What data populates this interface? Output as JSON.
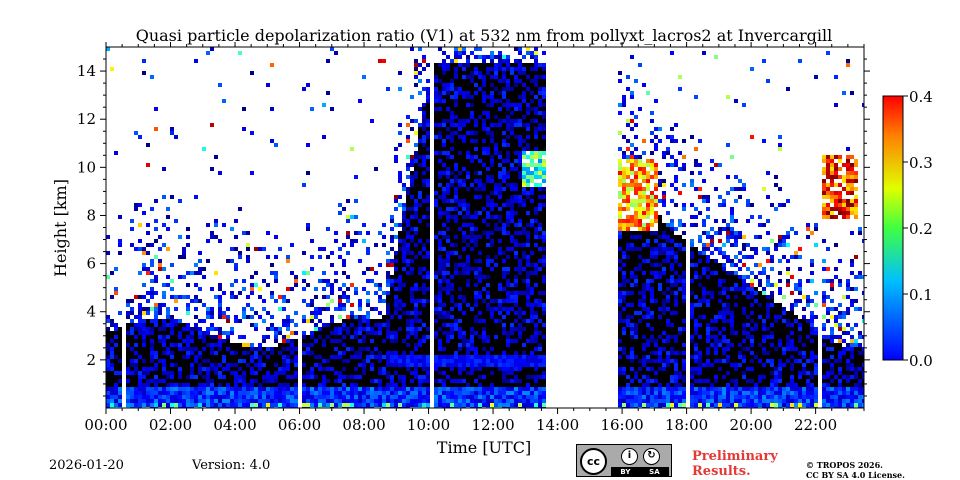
{
  "chart_data": {
    "type": "heatmap",
    "title": "Quasi particle depolarization ratio (V1) at 532 nm from pollyxt_lacros2 at Invercargill",
    "xlabel": "Time [UTC]",
    "ylabel": "Height [km]",
    "x_ticks": [
      "00:00",
      "02:00",
      "04:00",
      "06:00",
      "08:00",
      "10:00",
      "12:00",
      "14:00",
      "16:00",
      "18:00",
      "20:00",
      "22:00"
    ],
    "x_tick_hours": [
      0,
      2,
      4,
      6,
      8,
      10,
      12,
      14,
      16,
      18,
      20,
      22
    ],
    "xlim_hours": [
      0,
      23.5
    ],
    "y_ticks": [
      2,
      4,
      6,
      8,
      10,
      12,
      14
    ],
    "ylim": [
      0,
      15
    ],
    "colorbar": {
      "ticks": [
        0.0,
        0.1,
        0.2,
        0.3,
        0.4
      ],
      "tick_labels": [
        "0.0",
        "0.1",
        "0.2",
        "0.3",
        "0.4"
      ],
      "range": [
        0.0,
        0.4
      ],
      "colormap": "jet"
    },
    "data_gaps_hours": [
      [
        0.45,
        0.5
      ],
      [
        0.75,
        0.82
      ],
      [
        5.95,
        6.02
      ],
      [
        10.0,
        10.1
      ],
      [
        13.6,
        15.8
      ],
      [
        17.95,
        18.0
      ],
      [
        21.95,
        22.1
      ]
    ],
    "features": [
      {
        "label": "aerosol boundary layer",
        "time_start": 0.0,
        "time_end": 23.5,
        "height_top_km": 1.0,
        "value": 0.05
      },
      {
        "label": "residual layer",
        "time_start": 8.8,
        "time_end": 13.6,
        "height_bottom_km": 1.8,
        "height_top_km": 2.3,
        "value": 0.03
      },
      {
        "label": "cirrus",
        "time_start": 15.8,
        "time_end": 17.0,
        "height_bottom_km": 7.5,
        "height_top_km": 10.5,
        "value": 0.28
      },
      {
        "label": "cirrus",
        "time_start": 12.8,
        "time_end": 13.6,
        "height_bottom_km": 9.3,
        "height_top_km": 10.8,
        "value": 0.18
      },
      {
        "label": "cirrus",
        "time_start": 22.1,
        "time_end": 23.3,
        "height_bottom_km": 8.0,
        "height_top_km": 10.6,
        "value": 0.33
      }
    ]
  },
  "footer": {
    "date": "2026-01-20",
    "version": "Version: 4.0",
    "license_badge": {
      "by": "BY",
      "sa": "SA",
      "cc": "cc"
    },
    "preliminary_line1": "Preliminary",
    "preliminary_line2": "Results.",
    "copyright_line1": "© TROPOS 2026.",
    "copyright_line2": "CC BY SA 4.0 License."
  }
}
